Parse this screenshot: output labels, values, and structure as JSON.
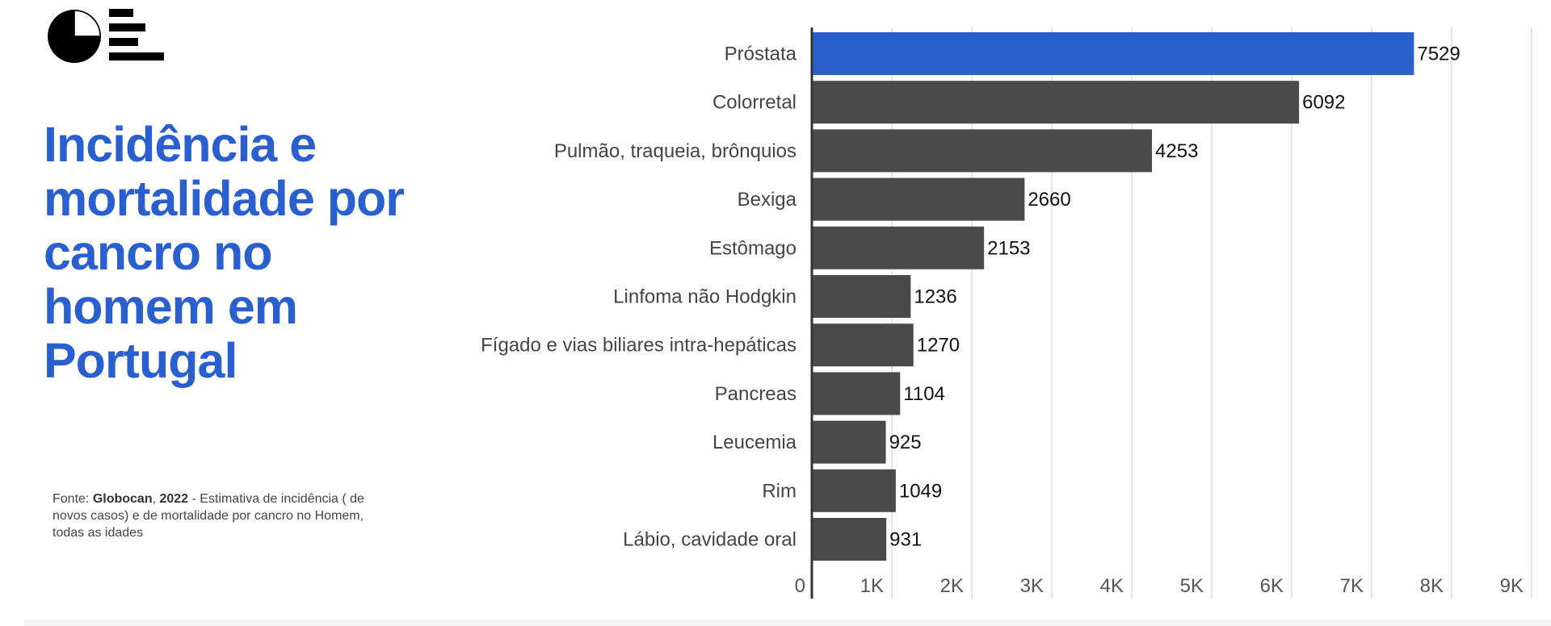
{
  "title": "Incidência e mortalidade por cancro no homem em Portugal",
  "source": {
    "prefix": "Fonte: ",
    "org": "Globocan",
    "sep": ", ",
    "year": "2022",
    "text": " - Estimativa de incidência ( de novos casos) e de mortalidade por cancro no Homem, todas as idades"
  },
  "colors": {
    "title": "#2a5fcf",
    "highlight": "#2b60cc",
    "bar": "#4a4a4a",
    "grid": "#dddddd"
  },
  "chart_data": {
    "type": "bar",
    "orientation": "horizontal",
    "categories": [
      "Próstata",
      "Colorretal",
      "Pulmão, traqueia, brônquios",
      "Bexiga",
      "Estômago",
      "Linfoma não Hodgkin",
      "Fígado e vias biliares intra-hepáticas",
      "Pancreas",
      "Leucemia",
      "Rim",
      "Lábio, cavidade oral"
    ],
    "values": [
      7529,
      6092,
      4253,
      2660,
      2153,
      1236,
      1270,
      1104,
      925,
      1049,
      931
    ],
    "highlighted": [
      "Próstata"
    ],
    "xlim": [
      0,
      9000
    ],
    "xticks": [
      0,
      1000,
      2000,
      3000,
      4000,
      5000,
      6000,
      7000,
      8000,
      9000
    ],
    "xtick_labels": [
      "0",
      "1K",
      "2K",
      "3K",
      "4K",
      "5K",
      "6K",
      "7K",
      "8K",
      "9K"
    ],
    "grid": true,
    "data_labels": true
  }
}
